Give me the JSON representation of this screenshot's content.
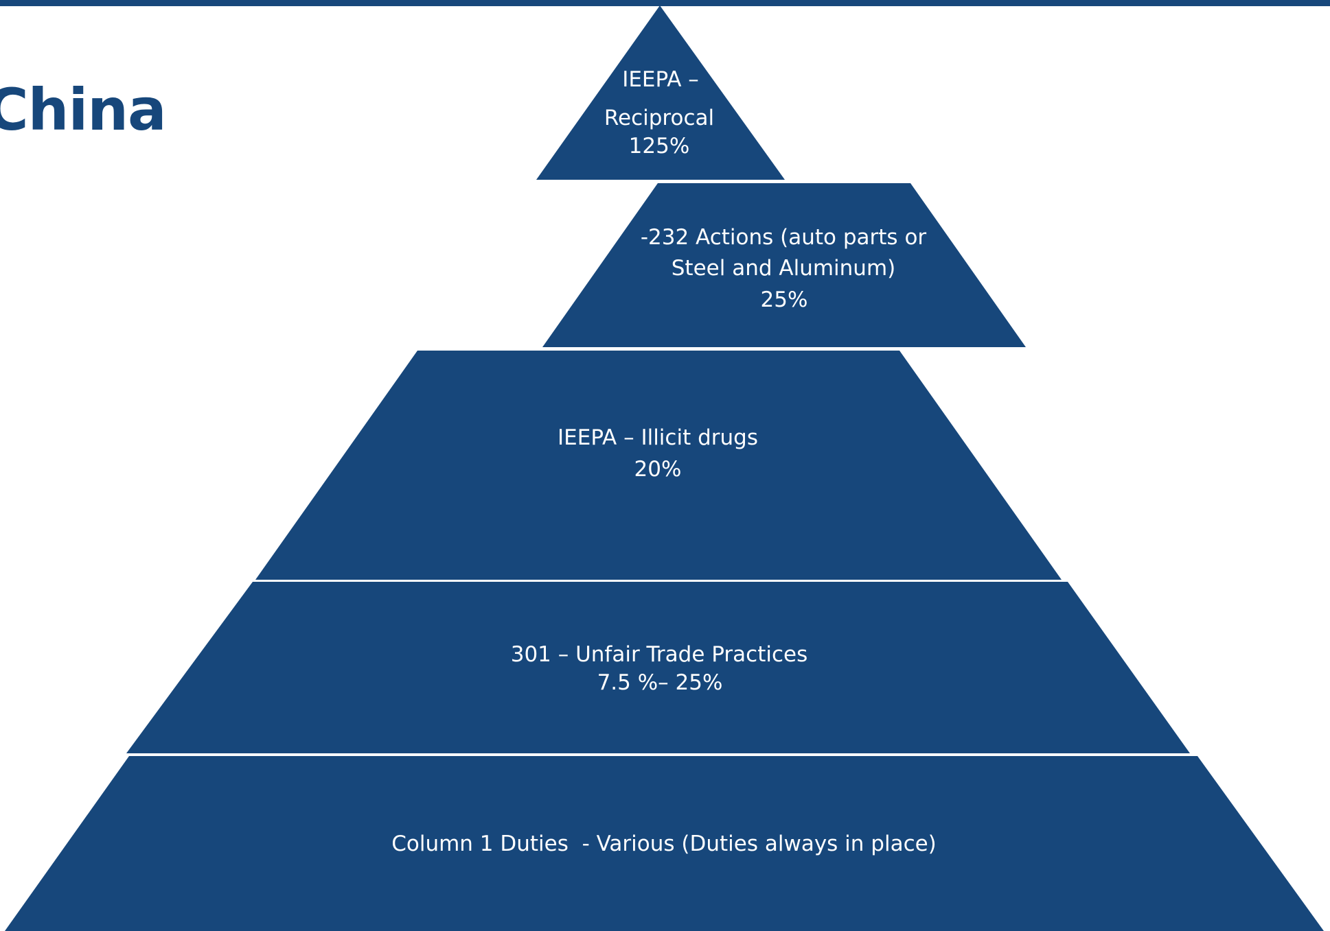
{
  "title": "China",
  "pyramid": {
    "tiers": [
      {
        "lines": [
          "IEEPA –",
          "Reciprocal",
          "125%"
        ]
      },
      {
        "lines": [
          "-232 Actions (auto parts or",
          "Steel and Aluminum)",
          "25%"
        ]
      },
      {
        "lines": [
          "IEEPA – Illicit drugs",
          "20%"
        ]
      },
      {
        "lines": [
          "301 – Unfair Trade Practices",
          "7.5 %– 25%"
        ]
      },
      {
        "lines": [
          "Column 1 Duties  - Various (Duties always in place)"
        ]
      }
    ],
    "fill_color": "#17477b",
    "text_color": "#ffffff"
  }
}
